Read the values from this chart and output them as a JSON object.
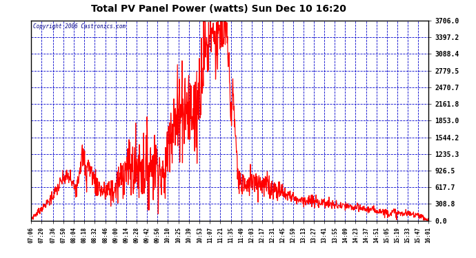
{
  "title": "Total PV Panel Power (watts) Sun Dec 10 16:20",
  "copyright": "Copyright 2006 Castronics.com",
  "background_color": "#FFFFFF",
  "plot_bg_color": "#FFFFFF",
  "grid_color": "#0000CC",
  "line_color": "#FF0000",
  "border_color": "#000000",
  "yticks": [
    0.0,
    308.8,
    617.7,
    926.5,
    1235.3,
    1544.2,
    1853.0,
    2161.8,
    2470.7,
    2779.5,
    3088.4,
    3397.2,
    3706.0
  ],
  "xtick_labels": [
    "07:06",
    "07:20",
    "07:36",
    "07:50",
    "08:04",
    "08:18",
    "08:32",
    "08:46",
    "09:00",
    "09:14",
    "09:28",
    "09:42",
    "09:56",
    "10:10",
    "10:25",
    "10:39",
    "10:53",
    "11:07",
    "11:21",
    "11:35",
    "11:49",
    "12:03",
    "12:17",
    "12:31",
    "12:45",
    "12:59",
    "13:13",
    "13:27",
    "13:41",
    "13:55",
    "14:09",
    "14:23",
    "14:37",
    "14:51",
    "15:05",
    "15:19",
    "15:33",
    "15:47",
    "16:01"
  ],
  "ymin": 0.0,
  "ymax": 3706.0
}
